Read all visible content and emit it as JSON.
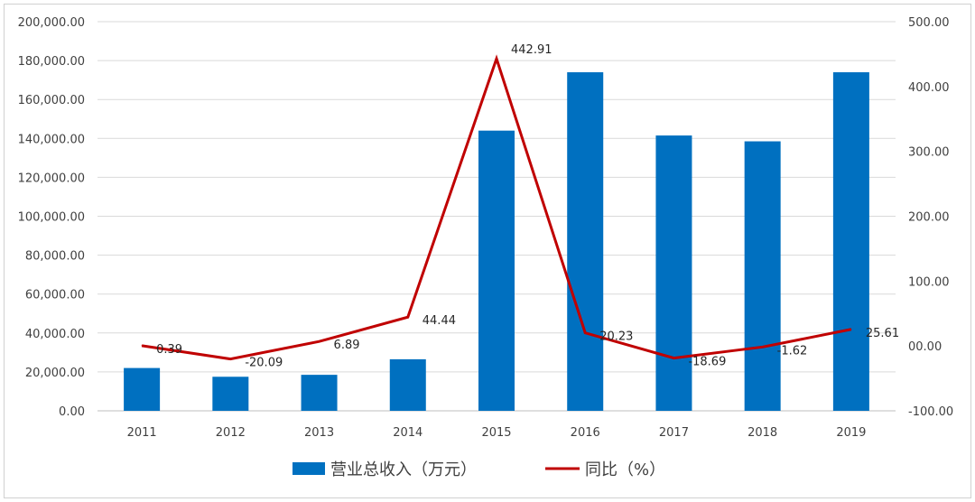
{
  "chart_data": {
    "type": "bar+line",
    "categories": [
      "2011",
      "2012",
      "2013",
      "2014",
      "2015",
      "2016",
      "2017",
      "2018",
      "2019"
    ],
    "series": [
      {
        "name": "营业总收入（万元）",
        "type": "bar",
        "axis": "left",
        "color": "#0070C0",
        "values": [
          22000,
          17500,
          18500,
          26500,
          144000,
          174000,
          141500,
          138500,
          174000
        ]
      },
      {
        "name": "同比（%）",
        "type": "line",
        "axis": "right",
        "color": "#C00000",
        "values": [
          0.39,
          -20.09,
          6.89,
          44.44,
          442.91,
          20.23,
          -18.69,
          -1.62,
          25.61
        ],
        "labels": [
          "0.39",
          "-20.09",
          "6.89",
          "44.44",
          "442.91",
          "20.23",
          "-18.69",
          "-1.62",
          "25.61"
        ]
      }
    ],
    "y_left": {
      "lim": [
        0,
        200000
      ],
      "ticks": [
        "0.00",
        "20,000.00",
        "40,000.00",
        "60,000.00",
        "80,000.00",
        "100,000.00",
        "120,000.00",
        "140,000.00",
        "160,000.00",
        "180,000.00",
        "200,000.00"
      ]
    },
    "y_right": {
      "lim": [
        -100,
        500
      ],
      "ticks": [
        "-100.00",
        "00.00",
        "100.00",
        "200.00",
        "300.00",
        "400.00",
        "500.00"
      ]
    },
    "grid": true,
    "legend_position": "bottom"
  }
}
